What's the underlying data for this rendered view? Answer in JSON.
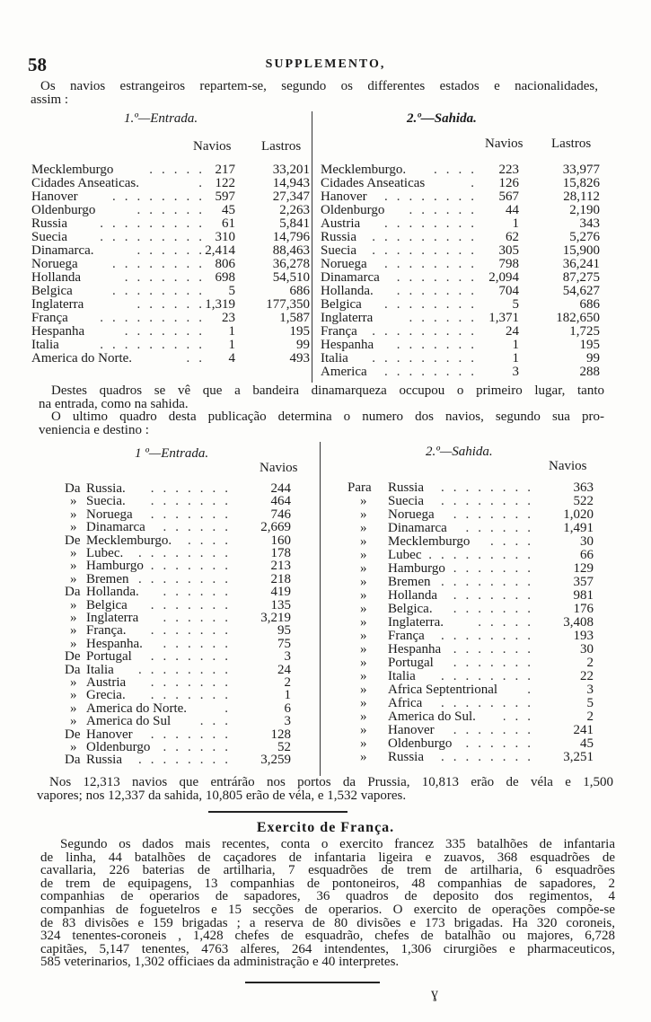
{
  "header": {
    "page_number": "58",
    "running_title": "SUPPLEMENTO,"
  },
  "intro": {
    "lines": [
      "Os navios estrangeiros repartem-se, segundo os differentes estados e nacionalidades,",
      "assim :"
    ]
  },
  "table1": {
    "entrada": {
      "title": "1.º—Entrada.",
      "col_navios": "Navios",
      "col_lastros": "Lastros",
      "rows": [
        {
          "name": "Mecklemburgo",
          "navios": "217",
          "lastros": "33,201"
        },
        {
          "name": "Cidades Anseaticas.",
          "navios": "122",
          "lastros": "14,943"
        },
        {
          "name": "Hanover",
          "navios": "597",
          "lastros": "27,347"
        },
        {
          "name": "Oldenburgo",
          "navios": "45",
          "lastros": "2,263"
        },
        {
          "name": "Russia",
          "navios": "61",
          "lastros": "5,841"
        },
        {
          "name": "Suecia",
          "navios": "310",
          "lastros": "14,796"
        },
        {
          "name": "Dinamarca.",
          "navios": "2,414",
          "lastros": "88,463"
        },
        {
          "name": "Noruega",
          "navios": "806",
          "lastros": "36,278"
        },
        {
          "name": "Hollanda",
          "navios": "698",
          "lastros": "54,510"
        },
        {
          "name": "Belgica",
          "navios": "5",
          "lastros": "686"
        },
        {
          "name": "Inglaterra",
          "navios": "1,319",
          "lastros": "177,350"
        },
        {
          "name": "França",
          "navios": "23",
          "lastros": "1,587"
        },
        {
          "name": "Hespanha",
          "navios": "1",
          "lastros": "195"
        },
        {
          "name": "Italia",
          "navios": "1",
          "lastros": "99"
        },
        {
          "name": "America do Norte.",
          "navios": "4",
          "lastros": "493"
        }
      ]
    },
    "sahida": {
      "title": "2.º—Sahida.",
      "col_navios": "Navios",
      "col_lastros": "Lastros",
      "rows": [
        {
          "name": "Mecklemburgo.",
          "navios": "223",
          "lastros": "33,977"
        },
        {
          "name": "Cidades Anseaticas",
          "navios": "126",
          "lastros": "15,826"
        },
        {
          "name": "Hanover",
          "navios": "567",
          "lastros": "28,112"
        },
        {
          "name": "Oldenburgo",
          "navios": "44",
          "lastros": "2,190"
        },
        {
          "name": "Austria",
          "navios": "1",
          "lastros": "343"
        },
        {
          "name": "Russia",
          "navios": "62",
          "lastros": "5,276"
        },
        {
          "name": "Suecia",
          "navios": "305",
          "lastros": "15,900"
        },
        {
          "name": "Noruega",
          "navios": "798",
          "lastros": "36,241"
        },
        {
          "name": "Dinamarca",
          "navios": "2,094",
          "lastros": "87,275"
        },
        {
          "name": "Hollanda.",
          "navios": "704",
          "lastros": "54,627"
        },
        {
          "name": "Belgica",
          "navios": "5",
          "lastros": "686"
        },
        {
          "name": "Inglaterra",
          "navios": "1,371",
          "lastros": "182,650"
        },
        {
          "name": "França",
          "navios": "24",
          "lastros": "1,725"
        },
        {
          "name": "Hespanha",
          "navios": "1",
          "lastros": "195"
        },
        {
          "name": "Italia",
          "navios": "1",
          "lastros": "99"
        },
        {
          "name": "America",
          "navios": "3",
          "lastros": "288"
        }
      ]
    }
  },
  "middle": {
    "lines": [
      "Destes quadros se vê que a bandeira dinamarqueza occupou o primeiro lugar, tanto",
      "na entrada, como na sahida.",
      "O ultimo quadro desta publicação determina o numero dos navios, segundo sua pro-",
      "veniencia e destino :"
    ]
  },
  "table2": {
    "entrada": {
      "title": "1 º—Entrada.",
      "col_navios": "Navios",
      "rows": [
        {
          "prefix": "Da",
          "name": "Russia.",
          "navios": "244"
        },
        {
          "prefix": "»",
          "name": "Suecia.",
          "navios": "464"
        },
        {
          "prefix": "»",
          "name": "Noruega",
          "navios": "746"
        },
        {
          "prefix": "»",
          "name": "Dinamarca",
          "navios": "2,669"
        },
        {
          "prefix": "De",
          "name": "Mecklemburgo.",
          "navios": "160"
        },
        {
          "prefix": "»",
          "name": "Lubec.",
          "navios": "178"
        },
        {
          "prefix": "»",
          "name": "Hamburgo",
          "navios": "213"
        },
        {
          "prefix": "»",
          "name": "Bremen",
          "navios": "218"
        },
        {
          "prefix": "Da",
          "name": "Hollanda.",
          "navios": "419"
        },
        {
          "prefix": "»",
          "name": "Belgica",
          "navios": "135"
        },
        {
          "prefix": "»",
          "name": "Inglaterra",
          "navios": "3,219"
        },
        {
          "prefix": "»",
          "name": "França.",
          "navios": "95"
        },
        {
          "prefix": "»",
          "name": "Hespanha.",
          "navios": "75"
        },
        {
          "prefix": "De",
          "name": "Portugal",
          "navios": "3"
        },
        {
          "prefix": "Da",
          "name": "Italia",
          "navios": "24"
        },
        {
          "prefix": "»",
          "name": "Austria",
          "navios": "2"
        },
        {
          "prefix": "»",
          "name": "Grecia.",
          "navios": "1"
        },
        {
          "prefix": "»",
          "name": "America do Norte.",
          "navios": "6"
        },
        {
          "prefix": "»",
          "name": "America do Sul",
          "navios": "3"
        },
        {
          "prefix": "De",
          "name": "Hanover",
          "navios": "128"
        },
        {
          "prefix": "»",
          "name": "Oldenburgo",
          "navios": "52"
        },
        {
          "prefix": "Da",
          "name": "Russia",
          "navios": "3,259"
        }
      ]
    },
    "sahida": {
      "title": "2.º—Sahida.",
      "col_navios": "Navios",
      "rows": [
        {
          "prefix": "Para",
          "name": "Russia",
          "navios": "363"
        },
        {
          "prefix": "»",
          "name": "Suecia",
          "navios": "522"
        },
        {
          "prefix": "»",
          "name": "Noruega",
          "navios": "1,020"
        },
        {
          "prefix": "»",
          "name": "Dinamarca",
          "navios": "1,491"
        },
        {
          "prefix": "»",
          "name": "Mecklemburgo",
          "navios": "30"
        },
        {
          "prefix": "»",
          "name": "Lubec",
          "navios": "66"
        },
        {
          "prefix": "»",
          "name": "Hamburgo",
          "navios": "129"
        },
        {
          "prefix": "»",
          "name": "Bremen",
          "navios": "357"
        },
        {
          "prefix": "»",
          "name": "Hollanda",
          "navios": "981"
        },
        {
          "prefix": "»",
          "name": "Belgica.",
          "navios": "176"
        },
        {
          "prefix": "»",
          "name": "Inglaterra.",
          "navios": "3,408"
        },
        {
          "prefix": "»",
          "name": "França",
          "navios": "193"
        },
        {
          "prefix": "»",
          "name": "Hespanha",
          "navios": "30"
        },
        {
          "prefix": "»",
          "name": "Portugal",
          "navios": "2"
        },
        {
          "prefix": "»",
          "name": "Italia",
          "navios": "22"
        },
        {
          "prefix": "»",
          "name": "Africa Septentrional",
          "navios": "3"
        },
        {
          "prefix": "»",
          "name": "Africa",
          "navios": "5"
        },
        {
          "prefix": "»",
          "name": "America do Sul.",
          "navios": "2"
        },
        {
          "prefix": "»",
          "name": "Hanover",
          "navios": "241"
        },
        {
          "prefix": "»",
          "name": "Oldenburgo",
          "navios": "45"
        },
        {
          "prefix": "»",
          "name": "Russia",
          "navios": "3,251"
        }
      ]
    }
  },
  "summary": {
    "lines": [
      "Nos 12,313 navios que entrárão nos portos da Prussia, 10,813 erão de véla e 1,500",
      "vapores; nos 12,337 da sahida, 10,805 erão de véla, e 1,532 vapores."
    ]
  },
  "section2": {
    "title": "Exercito de França.",
    "lines": [
      "Segundo os dados mais recentes, conta o exercito francez 335 batalhões de infantaria",
      "de linha, 44 batalhões de caçadores de infantaria ligeira e zuavos, 368 esquadrões de",
      "cavallaria, 226 baterias de artilharia, 7 esquadrões de trem de artilharia, 6 esquadrões",
      "de trem de equipagens, 13 companhias de pontoneiros, 48 companhias de sapadores, 2",
      "companhias de operarios de sapadores, 36 quadros de deposito dos regimentos, 4",
      "companhias de foguetelros e 15 secções de operarios. O exercito de operações compõe-se",
      "de 83 divisões e 159 brigadas ; a reserva de 80 divisões e 173 brigadas. Ha 320 coroneis,",
      "324 tenentes-coroneis , 1,428 chefes de esquadrão, chefes de batalhão ou majores, 6,728",
      "capitães, 5,147 tenentes, 4763 alferes, 264 intendentes, 1,306 cirurgiões e pharmaceuticos,",
      "585 veterinarios, 1,302 officiaes da administração e 40 interpretes."
    ]
  }
}
